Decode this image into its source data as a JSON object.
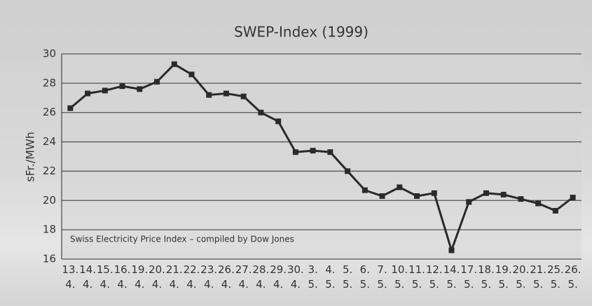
{
  "chart_data": {
    "type": "line",
    "title": "SWEP-Index (1999)",
    "y_label": "sFr./MWh",
    "annotation": "Swiss Electricity Price Index – compiled by Dow Jones",
    "categories": [
      "13.\n4.",
      "14.\n4.",
      "15.\n4.",
      "16.\n4.",
      "19.\n4.",
      "20.\n4.",
      "21.\n4.",
      "22.\n4.",
      "23.\n4.",
      "26.\n4.",
      "27.\n4.",
      "28.\n4.",
      "29.\n4.",
      "30.\n4.",
      "3.\n5.",
      "4.\n5.",
      "5.\n5.",
      "6.\n5.",
      "7.\n5.",
      "10.\n5.",
      "11.\n5.",
      "12.\n5.",
      "14.\n5.",
      "17.\n5.",
      "18.\n5.",
      "19.\n5.",
      "20.\n5.",
      "21.\n5.",
      "25.\n5.",
      "26.\n5."
    ],
    "values": [
      26.3,
      27.3,
      27.5,
      27.8,
      27.6,
      28.1,
      29.3,
      28.6,
      27.2,
      27.3,
      27.1,
      26.0,
      25.4,
      23.3,
      23.4,
      23.3,
      22.0,
      20.7,
      20.3,
      20.9,
      20.3,
      20.5,
      16.6,
      19.9,
      20.5,
      20.4,
      20.1,
      19.8,
      19.3,
      20.2
    ],
    "color": "#2a2a2a",
    "ylim": [
      16,
      30
    ],
    "yticks": [
      16,
      18,
      20,
      22,
      24,
      26,
      28,
      30
    ],
    "grid": true
  }
}
